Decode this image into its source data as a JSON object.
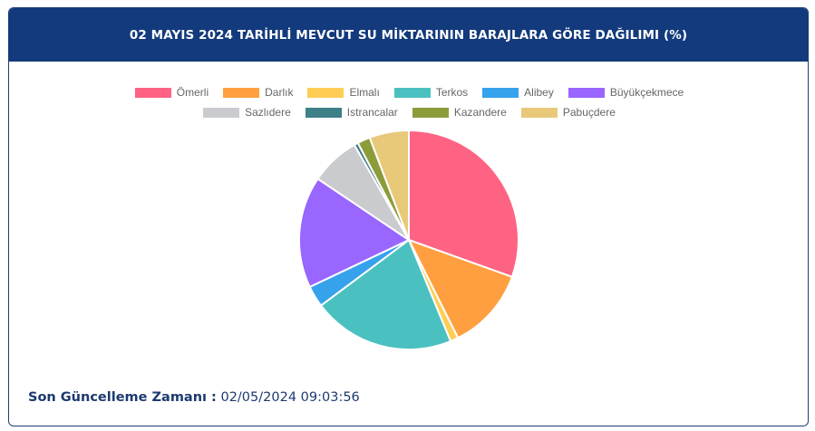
{
  "header": {
    "title": "02 MAYIS 2024 TARİHLİ MEVCUT SU MİKTARININ BARAJLARA GÖRE DAĞILIMI (%)"
  },
  "footer": {
    "label": "Son Güncelleme Zamanı :",
    "value": "02/05/2024 09:03:56"
  },
  "chart_data": {
    "type": "pie",
    "title": "02 MAYIS 2024 TARİHLİ MEVCUT SU MİKTARININ BARAJLARA GÖRE DAĞILIMI (%)",
    "legend_position": "top",
    "categories": [
      "Ömerli",
      "Darlık",
      "Elmalı",
      "Terkos",
      "Alibey",
      "Büyükçekmece",
      "Sazlıdere",
      "Istrancalar",
      "Kazandere",
      "Pabuçdere"
    ],
    "values": [
      30.9,
      12.3,
      1.2,
      21.3,
      3.2,
      16.7,
      7.4,
      0.6,
      1.9,
      5.9
    ],
    "colors": [
      "#ff6384",
      "#ff9f40",
      "#ffcd56",
      "#4bc0c0",
      "#36a2eb",
      "#9966ff",
      "#c9cbcf",
      "#3f7f87",
      "#8c9c3a",
      "#e8c97a"
    ]
  }
}
